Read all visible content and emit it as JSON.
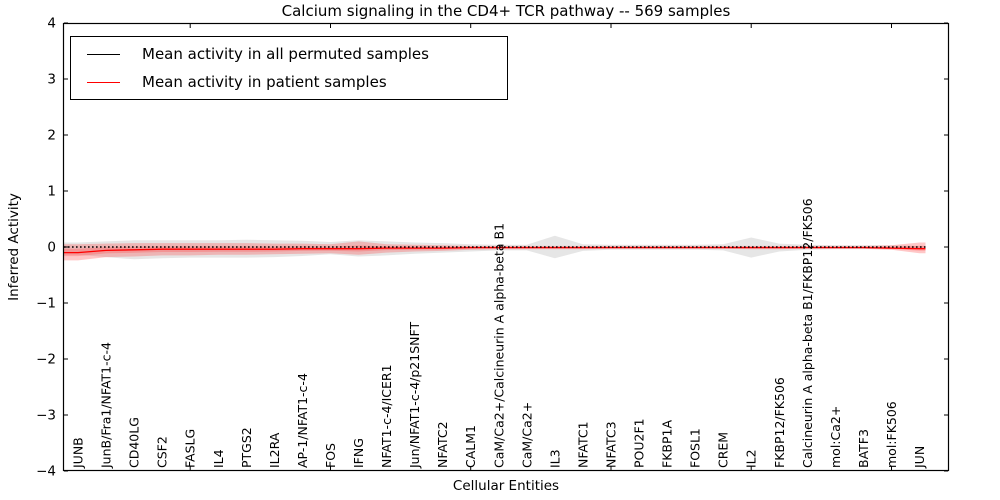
{
  "chart_data": {
    "type": "line",
    "title": "Calcium signaling in the CD4+ TCR pathway -- 569 samples",
    "xlabel": "Cellular Entities",
    "ylabel": "Inferred Activity",
    "ylim": [
      -4,
      4
    ],
    "yticks": [
      4,
      3,
      2,
      1,
      0,
      -1,
      -2,
      -3,
      -4
    ],
    "yticklabels": [
      "4",
      "3",
      "2",
      "1",
      "0",
      "−1",
      "−2",
      "−3",
      "−4"
    ],
    "x_major_tick_indices": [
      4,
      9,
      14,
      19,
      24,
      29
    ],
    "grid": false,
    "legend_position": "upper left",
    "x_categories": [
      "JUNB",
      "JunB/Fra1/NFAT1-c-4",
      "CD40LG",
      "CSF2",
      "FASLG",
      "IL4",
      "PTGS2",
      "IL2RA",
      "AP-1/NFAT1-c-4",
      "FOS",
      "IFNG",
      "NFAT1-c-4/ICER1",
      "Jun/NFAT1-c-4/p21SNFT",
      "NFATC2",
      "CALM1",
      "CaM/Ca2+/Calcineurin A alpha-beta B1",
      "CaM/Ca2+",
      "IL3",
      "NFATC1",
      "NFATC3",
      "POU2F1",
      "FKBP1A",
      "FOSL1",
      "CREM",
      "IL2",
      "FKBP12/FK506",
      "Calcineurin A alpha-beta B1/FKBP12/FK506",
      "mol:Ca2+",
      "BATF3",
      "mol:FK506",
      "JUN"
    ],
    "series": [
      {
        "name": "Mean activity in all permuted samples",
        "color": "#000000",
        "line_style": "dotted",
        "band_color": "#c8c8c8",
        "values": [
          0,
          0,
          0,
          0,
          0,
          0,
          0,
          0,
          0,
          0,
          0,
          0,
          0,
          0,
          0,
          0,
          0,
          0,
          0,
          0,
          0,
          0,
          0,
          0,
          0,
          0,
          0,
          0,
          0,
          0,
          0
        ],
        "band_upper": [
          0.08,
          0.1,
          0.12,
          0.12,
          0.12,
          0.12,
          0.13,
          0.12,
          0.11,
          0.09,
          0.12,
          0.1,
          0.08,
          0.07,
          0.05,
          0.04,
          0.04,
          0.2,
          0.05,
          0.04,
          0.04,
          0.04,
          0.04,
          0.05,
          0.17,
          0.06,
          0.04,
          0.03,
          0.03,
          0.03,
          0.02
        ],
        "band_lower": [
          -0.14,
          -0.18,
          -0.22,
          -0.2,
          -0.19,
          -0.19,
          -0.19,
          -0.18,
          -0.16,
          -0.13,
          -0.17,
          -0.15,
          -0.12,
          -0.1,
          -0.08,
          -0.06,
          -0.06,
          -0.2,
          -0.07,
          -0.05,
          -0.05,
          -0.05,
          -0.05,
          -0.06,
          -0.19,
          -0.08,
          -0.05,
          -0.04,
          -0.04,
          -0.04,
          -0.03
        ]
      },
      {
        "name": "Mean activity in patient samples",
        "color": "#ff0000",
        "line_style": "solid",
        "band_color": "#ff4444",
        "values": [
          -0.1,
          -0.06,
          -0.05,
          -0.04,
          -0.04,
          -0.04,
          -0.04,
          -0.04,
          -0.03,
          -0.03,
          -0.03,
          -0.02,
          -0.02,
          -0.02,
          -0.01,
          -0.01,
          -0.01,
          -0.01,
          -0.01,
          -0.01,
          -0.01,
          -0.01,
          -0.01,
          -0.01,
          -0.01,
          -0.01,
          -0.01,
          -0.01,
          -0.01,
          -0.02,
          -0.03
        ],
        "band_upper": [
          0.05,
          0.06,
          0.07,
          0.07,
          0.07,
          0.07,
          0.07,
          0.06,
          0.06,
          0.05,
          0.1,
          0.05,
          0.04,
          0.03,
          0.02,
          0.02,
          0.02,
          0.02,
          0.02,
          0.02,
          0.02,
          0.02,
          0.02,
          0.02,
          0.02,
          0.02,
          0.02,
          0.02,
          0.02,
          0.03,
          0.08
        ],
        "band_lower": [
          -0.24,
          -0.18,
          -0.17,
          -0.15,
          -0.15,
          -0.14,
          -0.14,
          -0.13,
          -0.12,
          -0.11,
          -0.14,
          -0.1,
          -0.08,
          -0.07,
          -0.05,
          -0.04,
          -0.04,
          -0.04,
          -0.04,
          -0.03,
          -0.03,
          -0.03,
          -0.03,
          -0.03,
          -0.04,
          -0.04,
          -0.03,
          -0.03,
          -0.03,
          -0.05,
          -0.11
        ]
      }
    ]
  }
}
